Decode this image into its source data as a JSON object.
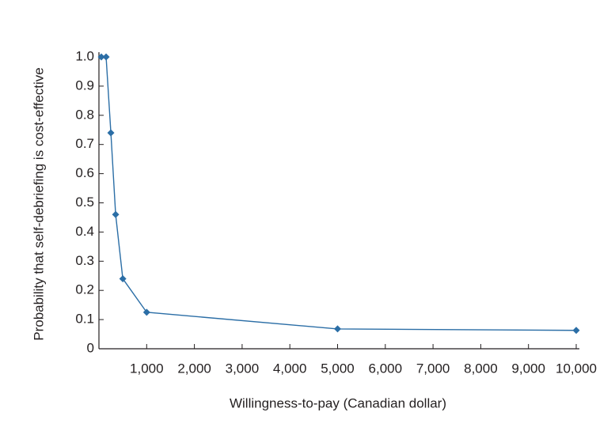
{
  "chart_data": {
    "type": "line",
    "x_label": "Willingness-to-pay (Canadian dollar)",
    "y_label": "Probability that self-debriefing is cost-effective",
    "x": [
      50,
      150,
      250,
      350,
      500,
      1000,
      5000,
      10000
    ],
    "series": [
      {
        "name": "Probability",
        "color": "#2b6ea6",
        "values": [
          1.0,
          1.0,
          0.74,
          0.46,
          0.24,
          0.125,
          0.068,
          0.063
        ]
      }
    ],
    "xlim": [
      0,
      10000
    ],
    "xticks": [
      {
        "value": 1000,
        "label": "1,000"
      },
      {
        "value": 2000,
        "label": "2,000"
      },
      {
        "value": 3000,
        "label": "3,000"
      },
      {
        "value": 4000,
        "label": "4,000"
      },
      {
        "value": 5000,
        "label": "5,000"
      },
      {
        "value": 6000,
        "label": "6,000"
      },
      {
        "value": 7000,
        "label": "7,000"
      },
      {
        "value": 8000,
        "label": "8,000"
      },
      {
        "value": 9000,
        "label": "9,000"
      },
      {
        "value": 10000,
        "label": "10,000"
      }
    ],
    "ylim": [
      0,
      1
    ],
    "yticks": [
      0,
      0.1,
      0.2,
      0.3,
      0.4,
      0.5,
      0.6,
      0.7,
      0.8,
      0.9,
      {
        "value": 1,
        "label": "1.0"
      }
    ],
    "grid": false
  }
}
